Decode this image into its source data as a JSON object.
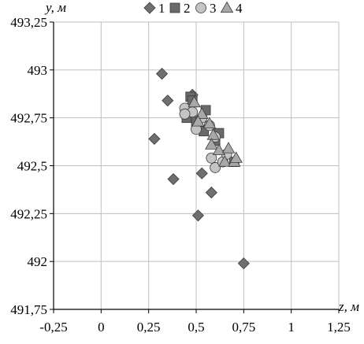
{
  "chart_data": {
    "type": "scatter",
    "xlabel": "z, м",
    "ylabel": "y, м",
    "xlim": [
      -0.25,
      1.25
    ],
    "ylim": [
      491.75,
      493.25
    ],
    "x_ticks": [
      "-0,25",
      "0",
      "0,25",
      "0,5",
      "0,75",
      "1",
      "1,25"
    ],
    "y_ticks": [
      "493,25",
      "493",
      "492,75",
      "492,5",
      "492,25",
      "492",
      "491,75"
    ],
    "x_tick_values": [
      -0.25,
      0,
      0.25,
      0.5,
      0.75,
      1,
      1.25
    ],
    "y_tick_values": [
      493.25,
      493,
      492.75,
      492.5,
      492.25,
      492,
      491.75
    ],
    "grid": true,
    "legend_position": "top",
    "series": [
      {
        "name": "1",
        "marker": "diamond",
        "color": "#6f6f6f",
        "points": [
          [
            0.32,
            492.98
          ],
          [
            0.35,
            492.84
          ],
          [
            0.28,
            492.64
          ],
          [
            0.38,
            492.43
          ],
          [
            0.53,
            492.46
          ],
          [
            0.58,
            492.36
          ],
          [
            0.51,
            492.24
          ],
          [
            0.75,
            491.99
          ],
          [
            0.48,
            492.87
          ]
        ]
      },
      {
        "name": "2",
        "marker": "square",
        "color": "#6a6a6a",
        "points": [
          [
            0.47,
            492.86
          ],
          [
            0.48,
            492.84
          ],
          [
            0.55,
            492.79
          ],
          [
            0.45,
            492.75
          ],
          [
            0.5,
            492.73
          ],
          [
            0.54,
            492.68
          ],
          [
            0.6,
            492.63
          ],
          [
            0.62,
            492.67
          ],
          [
            0.7,
            492.52
          ]
        ]
      },
      {
        "name": "3",
        "marker": "circle",
        "color": "#c4c4c4",
        "points": [
          [
            0.44,
            492.8
          ],
          [
            0.48,
            492.78
          ],
          [
            0.53,
            492.75
          ],
          [
            0.57,
            492.71
          ],
          [
            0.5,
            492.69
          ],
          [
            0.6,
            492.65
          ],
          [
            0.58,
            492.54
          ],
          [
            0.6,
            492.49
          ],
          [
            0.64,
            492.52
          ],
          [
            0.66,
            492.56
          ],
          [
            0.44,
            492.77
          ]
        ]
      },
      {
        "name": "4",
        "marker": "triangle",
        "color": "#a8a8a8",
        "points": [
          [
            0.49,
            492.83
          ],
          [
            0.53,
            492.77
          ],
          [
            0.57,
            492.72
          ],
          [
            0.59,
            492.66
          ],
          [
            0.58,
            492.61
          ],
          [
            0.62,
            492.58
          ],
          [
            0.67,
            492.59
          ],
          [
            0.65,
            492.52
          ],
          [
            0.7,
            492.52
          ],
          [
            0.71,
            492.54
          ],
          [
            0.51,
            492.73
          ]
        ]
      }
    ]
  }
}
